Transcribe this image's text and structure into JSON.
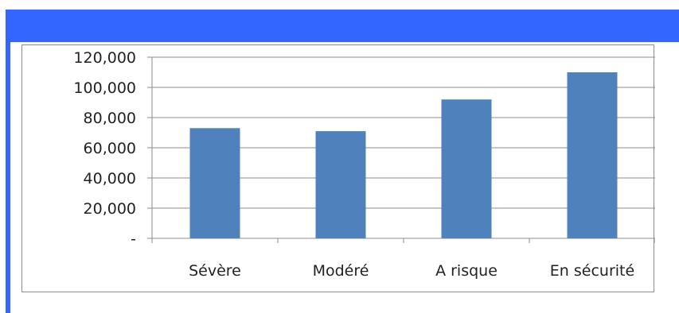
{
  "chart_data": {
    "type": "bar",
    "title": "",
    "xlabel": "",
    "ylabel": "",
    "categories": [
      "Sévère",
      "Modéré",
      "A risque",
      "En sécurité"
    ],
    "values": [
      73000,
      71000,
      92000,
      110000
    ],
    "ylim": [
      0,
      120000
    ],
    "yticks": [
      0,
      20000,
      40000,
      60000,
      80000,
      100000,
      120000
    ],
    "ytick_labels": [
      "-",
      "20,000",
      "40,000",
      "60,000",
      "80,000",
      "100,000",
      "120,000"
    ],
    "grid": true,
    "legend": "none",
    "colors": {
      "bar": "#4f81bd",
      "grid": "#8c8c8c",
      "axis": "#8c8c8c",
      "banner": "#3366ff"
    }
  }
}
